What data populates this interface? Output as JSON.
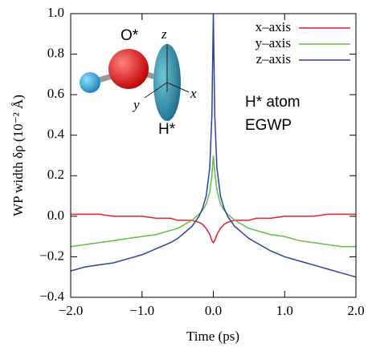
{
  "chart_data": {
    "type": "line",
    "x_label": "Time (ps)",
    "y_label": "WP width δρ  (10⁻² Å)",
    "x": [
      -2.0,
      -1.8,
      -1.6,
      -1.4,
      -1.2,
      -1.0,
      -0.8,
      -0.6,
      -0.5,
      -0.4,
      -0.3,
      -0.2,
      -0.15,
      -0.1,
      -0.05,
      -0.02,
      0,
      0.02,
      0.05,
      0.1,
      0.15,
      0.2,
      0.3,
      0.4,
      0.5,
      0.6,
      0.8,
      1.0,
      1.2,
      1.4,
      1.6,
      1.8,
      2.0
    ],
    "series": [
      {
        "name": "x–axis",
        "color": "#e8201f",
        "values": [
          0.01,
          0.01,
          0.01,
          0.0,
          0.0,
          0.0,
          -0.01,
          -0.01,
          -0.02,
          -0.02,
          -0.02,
          -0.03,
          -0.04,
          -0.06,
          -0.09,
          -0.12,
          -0.13,
          -0.12,
          -0.09,
          -0.06,
          -0.04,
          -0.03,
          -0.02,
          -0.02,
          -0.02,
          -0.01,
          -0.01,
          0.0,
          0.0,
          0.0,
          0.01,
          0.01,
          0.01
        ]
      },
      {
        "name": "y–axis",
        "color": "#5cc040",
        "values": [
          -0.15,
          -0.14,
          -0.13,
          -0.12,
          -0.11,
          -0.1,
          -0.09,
          -0.07,
          -0.06,
          -0.04,
          -0.02,
          0.01,
          0.03,
          0.06,
          0.12,
          0.2,
          0.3,
          0.22,
          0.13,
          0.06,
          0.03,
          0.01,
          -0.02,
          -0.04,
          -0.06,
          -0.07,
          -0.09,
          -0.1,
          -0.12,
          -0.13,
          -0.14,
          -0.15,
          -0.15
        ]
      },
      {
        "name": "z–axis",
        "color": "#2c3fa8",
        "values": [
          -0.27,
          -0.25,
          -0.24,
          -0.23,
          -0.21,
          -0.19,
          -0.16,
          -0.13,
          -0.11,
          -0.08,
          -0.05,
          0.0,
          0.04,
          0.1,
          0.24,
          0.5,
          1.0,
          0.5,
          0.24,
          0.1,
          0.04,
          0.0,
          -0.05,
          -0.08,
          -0.11,
          -0.13,
          -0.17,
          -0.2,
          -0.22,
          -0.24,
          -0.26,
          -0.28,
          -0.3
        ]
      }
    ],
    "xlim": [
      -2.0,
      2.0
    ],
    "xticks": [
      {
        "value": -2.0,
        "label": "−2.0"
      },
      {
        "value": -1.0,
        "label": "−1.0"
      },
      {
        "value": 0,
        "label": "0.0"
      },
      {
        "value": 1.0,
        "label": "1.0"
      },
      {
        "value": 2.0,
        "label": "2.0"
      }
    ],
    "ylim": [
      -0.4,
      1.0
    ],
    "yticks": [
      {
        "value": -0.4,
        "label": "−0.4"
      },
      {
        "value": -0.2,
        "label": "−0.2"
      },
      {
        "value": 0,
        "label": "0.0"
      },
      0.2,
      0.4,
      0.6,
      0.8,
      {
        "value": 1.0,
        "label": "1.0"
      }
    ],
    "legend": "upper right",
    "annotations": [
      "H* atom",
      "EGWP"
    ],
    "inset_labels": [
      "O*",
      "H*",
      "z",
      "y",
      "x"
    ]
  }
}
